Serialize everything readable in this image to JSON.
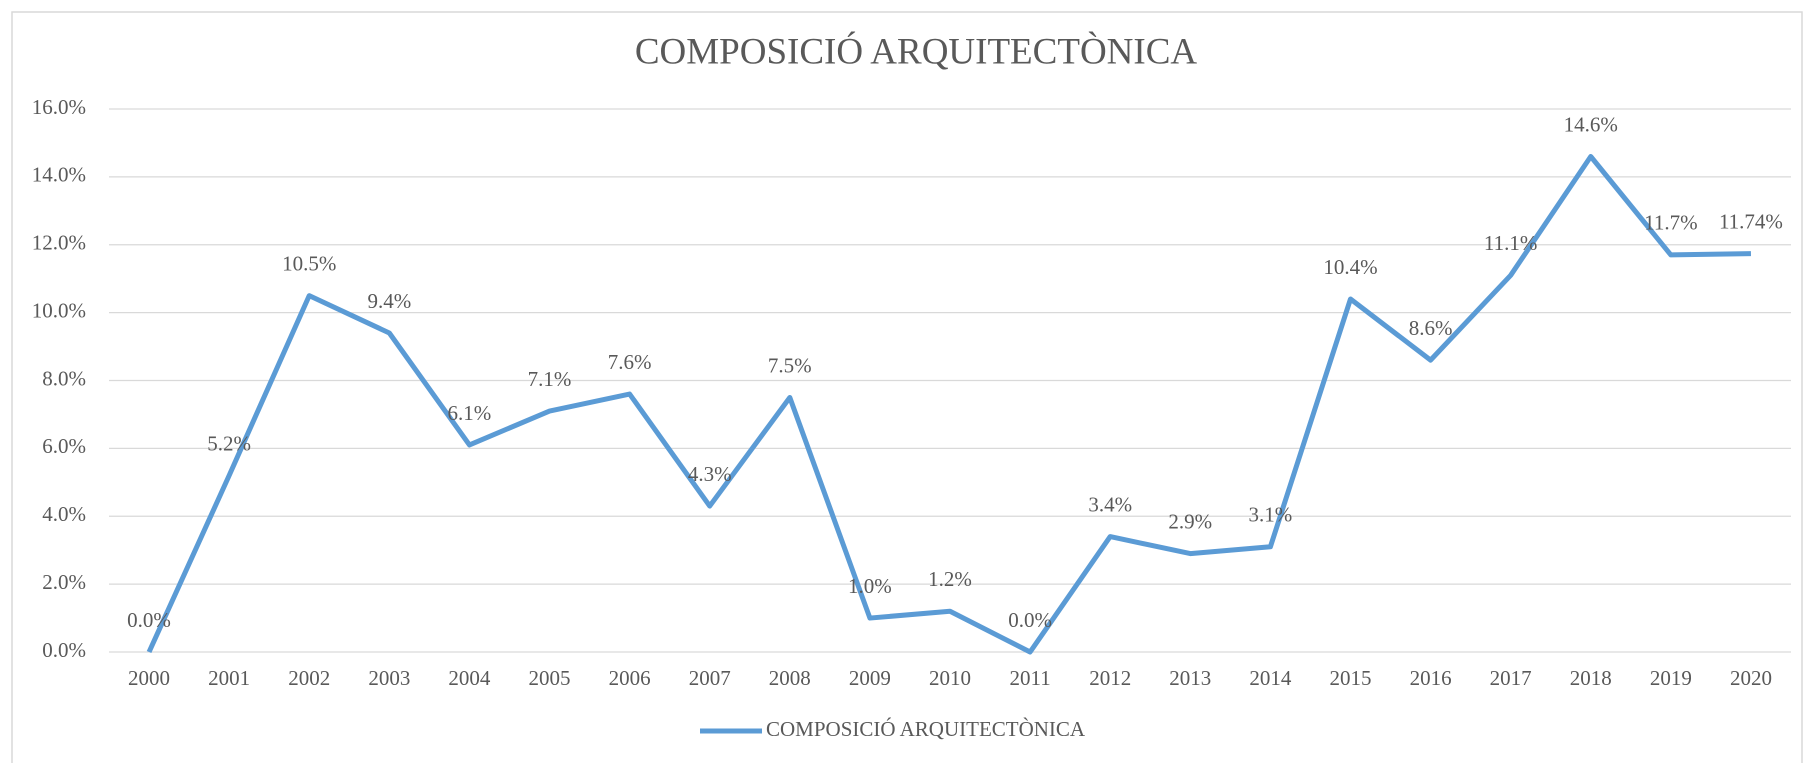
{
  "chart_data": {
    "type": "line",
    "title": "COMPOSICIÓ ARQUITECTÒNICA",
    "categories": [
      "2000",
      "2001",
      "2002",
      "2003",
      "2004",
      "2005",
      "2006",
      "2007",
      "2008",
      "2009",
      "2010",
      "2011",
      "2012",
      "2013",
      "2014",
      "2015",
      "2016",
      "2017",
      "2018",
      "2019",
      "2020"
    ],
    "series": [
      {
        "name": "COMPOSICIÓ ARQUITECTÒNICA",
        "color": "#5b9bd5",
        "values": [
          0.0,
          5.2,
          10.5,
          9.4,
          6.1,
          7.1,
          7.6,
          4.3,
          7.5,
          1.0,
          1.2,
          0.0,
          3.4,
          2.9,
          3.1,
          10.4,
          8.6,
          11.1,
          14.6,
          11.7,
          11.74
        ],
        "value_labels": [
          "0.0%",
          "5.2%",
          "10.5%",
          "9.4%",
          "6.1%",
          "7.1%",
          "7.6%",
          "4.3%",
          "7.5%",
          "1.0%",
          "1.2%",
          "0.0%",
          "3.4%",
          "2.9%",
          "3.1%",
          "10.4%",
          "8.6%",
          "11.1%",
          "14.6%",
          "11.7%",
          "11.74%"
        ]
      }
    ],
    "ylim": [
      0,
      16
    ],
    "yticks": [
      {
        "value": 0,
        "label": "0.0%"
      },
      {
        "value": 2,
        "label": "2.0%"
      },
      {
        "value": 4,
        "label": "4.0%"
      },
      {
        "value": 6,
        "label": "6.0%"
      },
      {
        "value": 8,
        "label": "8.0%"
      },
      {
        "value": 10,
        "label": "10.0%"
      },
      {
        "value": 12,
        "label": "12.0%"
      },
      {
        "value": 14,
        "label": "14.0%"
      },
      {
        "value": 16,
        "label": "16.0%"
      }
    ],
    "grid": true,
    "legend": "bottom"
  }
}
